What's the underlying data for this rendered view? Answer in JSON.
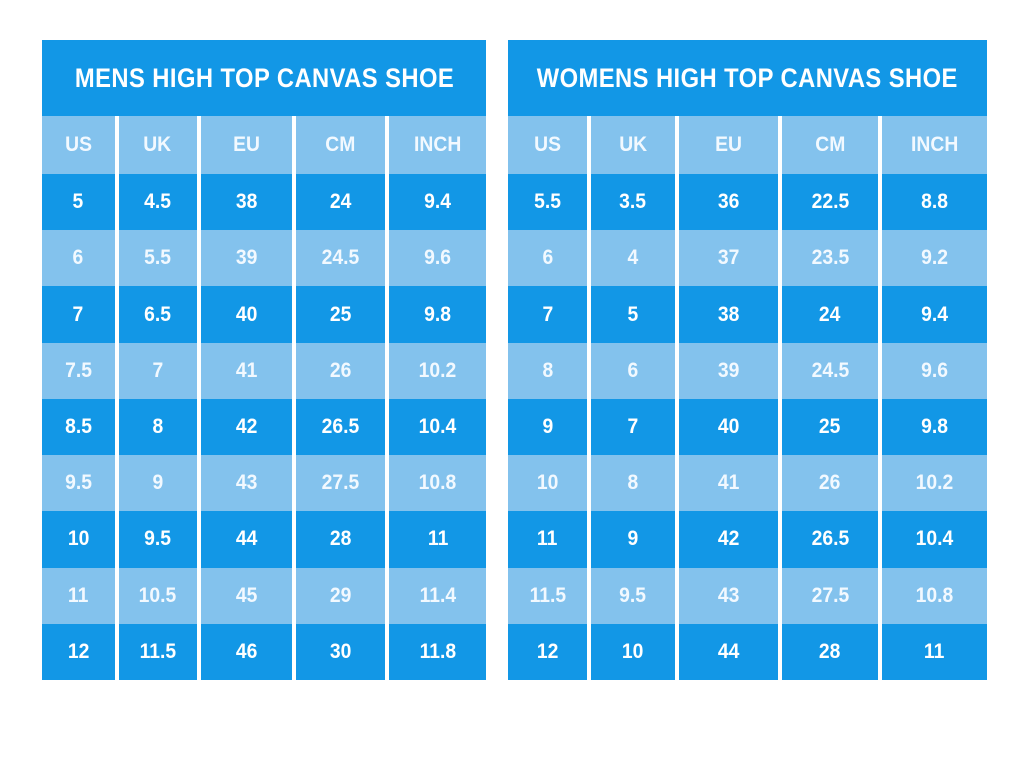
{
  "colors": {
    "page_bg": "#ffffff",
    "title_bg": "#1297e6",
    "row_dark": "#1297e6",
    "row_light": "#83c2ed",
    "divider": "#ffffff",
    "text": "#ffffff"
  },
  "chart_data": [
    {
      "type": "table",
      "title": "MENS HIGH TOP CANVAS SHOE",
      "columns": [
        "US",
        "UK",
        "EU",
        "CM",
        "INCH"
      ],
      "rows": [
        [
          5,
          4.5,
          38,
          24,
          9.4
        ],
        [
          6,
          5.5,
          39,
          24.5,
          9.6
        ],
        [
          7,
          6.5,
          40,
          25,
          9.8
        ],
        [
          7.5,
          7,
          41,
          26,
          10.2
        ],
        [
          8.5,
          8,
          42,
          26.5,
          10.4
        ],
        [
          9.5,
          9,
          43,
          27.5,
          10.8
        ],
        [
          10,
          9.5,
          44,
          28,
          11
        ],
        [
          11,
          10.5,
          45,
          29,
          11.4
        ],
        [
          12,
          11.5,
          46,
          30,
          11.8
        ]
      ]
    },
    {
      "type": "table",
      "title": "WOMENS HIGH TOP CANVAS SHOE",
      "columns": [
        "US",
        "UK",
        "EU",
        "CM",
        "INCH"
      ],
      "rows": [
        [
          5.5,
          3.5,
          36,
          22.5,
          8.8
        ],
        [
          6,
          4,
          37,
          23.5,
          9.2
        ],
        [
          7,
          5,
          38,
          24,
          9.4
        ],
        [
          8,
          6,
          39,
          24.5,
          9.6
        ],
        [
          9,
          7,
          40,
          25,
          9.8
        ],
        [
          10,
          8,
          41,
          26,
          10.2
        ],
        [
          11,
          9,
          42,
          26.5,
          10.4
        ],
        [
          11.5,
          9.5,
          43,
          27.5,
          10.8
        ],
        [
          12,
          10,
          44,
          28,
          11
        ]
      ]
    }
  ]
}
